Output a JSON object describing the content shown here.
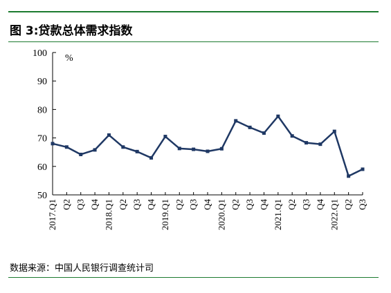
{
  "figure": {
    "title": "图 3:贷款总体需求指数",
    "source": "数据来源：中国人民银行调查统计司"
  },
  "colors": {
    "rule": "#1a7a2e",
    "series_line": "#1f3864",
    "axis": "#000000"
  },
  "chart_data": {
    "type": "line",
    "title": "",
    "unit_label": "%",
    "xlabel": "",
    "ylabel": "",
    "ylim": [
      50,
      100
    ],
    "yticks": [
      50,
      60,
      70,
      80,
      90,
      100
    ],
    "grid": false,
    "legend": "none",
    "x": [
      "2017.Q1",
      "Q2",
      "Q3",
      "Q4",
      "2018.Q1",
      "Q2",
      "Q3",
      "Q4",
      "2019.Q1",
      "Q2",
      "Q3",
      "Q4",
      "2020.Q1",
      "Q2",
      "Q3",
      "Q4",
      "2021.Q1",
      "Q2",
      "Q3",
      "Q4",
      "2022.Q1",
      "Q2",
      "Q3"
    ],
    "series": [
      {
        "values": [
          68.0,
          66.8,
          64.2,
          65.8,
          71.0,
          66.8,
          65.2,
          63.0,
          70.5,
          66.3,
          66.0,
          65.3,
          66.2,
          76.0,
          73.7,
          71.7,
          77.6,
          70.7,
          68.3,
          67.8,
          72.3,
          56.6,
          59.0
        ]
      }
    ]
  }
}
